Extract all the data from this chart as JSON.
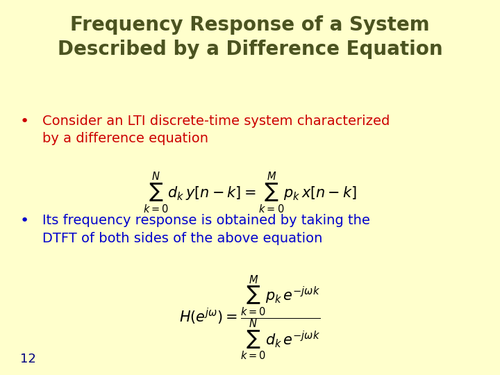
{
  "background_color": "#FFFFCC",
  "title_line1": "Frequency Response of a System",
  "title_line2": "Described by a Difference Equation",
  "title_color": "#4B5320",
  "bullet_color": "#CC0000",
  "text_color_blue": "#0000CC",
  "bullet1_text1": "Consider an LTI discrete-time system characterized",
  "bullet1_text2": "by a difference equation",
  "bullet2_text1": "Its frequency response is obtained by taking the",
  "bullet2_text2": "DTFT of both sides of the above equation",
  "slide_number": "12",
  "slide_number_color": "#000080",
  "eq1_fontsize": 15,
  "eq2_fontsize": 15,
  "title_fontsize": 20,
  "bullet_fontsize": 14,
  "slide_num_fontsize": 13
}
